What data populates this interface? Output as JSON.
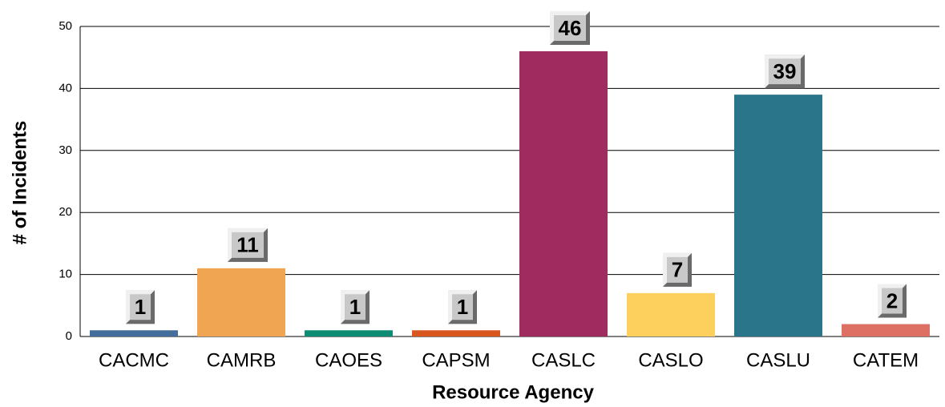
{
  "chart_data": {
    "type": "bar",
    "x_label": "Resource Agency",
    "y_label": "# of Incidents",
    "categories": [
      "CACMC",
      "CAMRB",
      "CAOES",
      "CAPSM",
      "CASLC",
      "CASLO",
      "CASLU",
      "CATEM"
    ],
    "values": [
      1,
      11,
      1,
      1,
      46,
      7,
      39,
      2
    ],
    "colors": [
      "#436d9b",
      "#f0a552",
      "#0f8c74",
      "#d9561f",
      "#a02b5e",
      "#fdcf5d",
      "#2a758a",
      "#dd6f63"
    ],
    "ylim": [
      0,
      50
    ],
    "yticks": [
      0,
      10,
      20,
      30,
      40,
      50
    ],
    "grid": true
  }
}
